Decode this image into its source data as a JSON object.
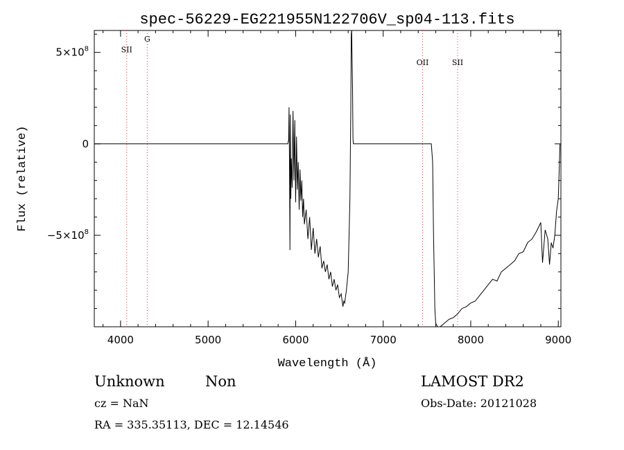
{
  "chart_data": {
    "type": "line",
    "title": "spec-56229-EG221955N122706V_sp04-113.fits",
    "xlabel": "Wavelength (Å)",
    "ylabel": "Flux (relative)",
    "xlim": [
      3700,
      9030
    ],
    "ylim": [
      -1000000000.0,
      620000000.0
    ],
    "x_ticks": [
      {
        "value": 4000,
        "label": "4000"
      },
      {
        "value": 5000,
        "label": "5000"
      },
      {
        "value": 6000,
        "label": "6000"
      },
      {
        "value": 7000,
        "label": "7000"
      },
      {
        "value": 8000,
        "label": "8000"
      },
      {
        "value": 9000,
        "label": "9000"
      }
    ],
    "y_ticks": [
      {
        "value": 500000000,
        "mantissa": "5×10",
        "exp": "8"
      },
      {
        "value": 0,
        "mantissa": "0",
        "exp": ""
      },
      {
        "value": -500000000,
        "mantissa": "−5×10",
        "exp": "8"
      }
    ],
    "lines": [
      {
        "label": "SII",
        "x": 4070,
        "label_y": 500000000.0
      },
      {
        "label": "G",
        "x": 4305,
        "label_y": 560000000.0
      },
      {
        "label": "OII",
        "x": 7450,
        "label_y": 430000000.0
      },
      {
        "label": "SII",
        "x": 7850,
        "label_y": 430000000.0
      }
    ],
    "series": [
      {
        "x": [
          3700,
          5910,
          5920,
          5925,
          5930,
          5935,
          5940,
          5945,
          5950,
          5960,
          5970,
          5980,
          5990,
          6000,
          6010,
          6020,
          6030,
          6040,
          6050,
          6060,
          6070,
          6080,
          6090,
          6100,
          6120,
          6140,
          6160,
          6180,
          6200,
          6220,
          6240,
          6260,
          6280,
          6300,
          6320,
          6340,
          6360,
          6380,
          6400,
          6420,
          6440,
          6460,
          6480,
          6500,
          6520,
          6540,
          6550,
          6560,
          6580,
          6600,
          6620,
          6630,
          6635,
          6640,
          6650,
          6655,
          6660,
          7400,
          7500,
          7550,
          7565,
          7575,
          7590,
          7600,
          7620,
          7650,
          7700,
          7750,
          7800,
          7850,
          7900,
          7950,
          8000,
          8050,
          8100,
          8150,
          8200,
          8250,
          8300,
          8350,
          8400,
          8450,
          8500,
          8550,
          8600,
          8650,
          8700,
          8750,
          8800,
          8820,
          8850,
          8880,
          8900,
          8920,
          8940,
          8960,
          8980,
          9000,
          9010,
          9020
        ],
        "y": [
          0,
          0,
          20000000.0,
          200000000.0,
          -150000000.0,
          -580000000.0,
          160000000.0,
          -300000000.0,
          -80000000.0,
          -240000000.0,
          180000000.0,
          -200000000.0,
          130000000.0,
          -320000000.0,
          40000000.0,
          -250000000.0,
          -100000000.0,
          -360000000.0,
          -140000000.0,
          -310000000.0,
          -200000000.0,
          -400000000.0,
          -300000000.0,
          -440000000.0,
          -360000000.0,
          -520000000.0,
          -400000000.0,
          -580000000.0,
          -460000000.0,
          -600000000.0,
          -520000000.0,
          -620000000.0,
          -560000000.0,
          -680000000.0,
          -640000000.0,
          -700000000.0,
          -660000000.0,
          -740000000.0,
          -700000000.0,
          -780000000.0,
          -740000000.0,
          -800000000.0,
          -770000000.0,
          -840000000.0,
          -820000000.0,
          -890000000.0,
          -860000000.0,
          -870000000.0,
          -800000000.0,
          -700000000.0,
          -300000000.0,
          200000000.0,
          600000000.0,
          620000000.0,
          300000000.0,
          30000000.0,
          0,
          0,
          0,
          0,
          -100000000.0,
          -500000000.0,
          -900000000.0,
          -980000000.0,
          -1000000000.0,
          -1000000000.0,
          -980000000.0,
          -960000000.0,
          -950000000.0,
          -930000000.0,
          -900000000.0,
          -890000000.0,
          -870000000.0,
          -860000000.0,
          -830000000.0,
          -800000000.0,
          -770000000.0,
          -740000000.0,
          -750000000.0,
          -700000000.0,
          -680000000.0,
          -660000000.0,
          -640000000.0,
          -600000000.0,
          -590000000.0,
          -540000000.0,
          -520000000.0,
          -480000000.0,
          -430000000.0,
          -650000000.0,
          -470000000.0,
          -520000000.0,
          -660000000.0,
          -540000000.0,
          -570000000.0,
          -500000000.0,
          -370000000.0,
          -300000000.0,
          -150000000.0,
          0
        ]
      }
    ]
  },
  "info": {
    "class_label": "Unknown",
    "subclass_label": "Non",
    "cz_text": "cz = NaN",
    "radec_text": "RA = 335.35113, DEC =  12.14546",
    "survey_label": "LAMOST DR2",
    "obs_date_text": "Obs-Date: 20121028"
  }
}
